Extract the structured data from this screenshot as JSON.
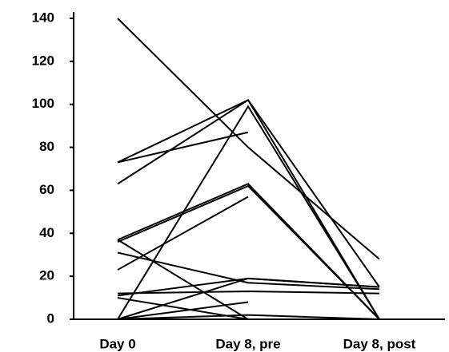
{
  "chart_data": {
    "type": "line",
    "categories": [
      "Day 0",
      "Day 8, pre",
      "Day 8, post"
    ],
    "ylim": [
      0,
      140
    ],
    "yticks": [
      0,
      20,
      40,
      60,
      80,
      100,
      120,
      140
    ],
    "series": [
      {
        "color": "#000000",
        "values": [
          140,
          80,
          28
        ]
      },
      {
        "color": "#000000",
        "values": [
          73,
          102,
          0
        ]
      },
      {
        "color": "#000000",
        "values": [
          73,
          87,
          null
        ]
      },
      {
        "color": "#000000",
        "values": [
          63,
          102,
          15
        ]
      },
      {
        "color": "#000000",
        "values": [
          0,
          99,
          0
        ]
      },
      {
        "color": "#000000",
        "values": [
          37,
          63,
          0
        ]
      },
      {
        "color": "#000000",
        "values": [
          23,
          57,
          null
        ]
      },
      {
        "color": "#000000",
        "values": [
          36,
          62,
          0
        ]
      },
      {
        "color": "#000000",
        "values": [
          37,
          0,
          0
        ]
      },
      {
        "color": "#000000",
        "values": [
          31,
          17,
          14
        ]
      },
      {
        "color": "#000000",
        "values": [
          12,
          13,
          12
        ]
      },
      {
        "color": "#000000",
        "values": [
          11,
          19,
          15
        ]
      },
      {
        "color": "#000000",
        "values": [
          10,
          0,
          null
        ]
      },
      {
        "color": "#000000",
        "values": [
          0,
          19,
          15
        ]
      },
      {
        "color": "#000000",
        "values": [
          0,
          8,
          null
        ]
      },
      {
        "color": "#000000",
        "values": [
          0,
          2,
          0
        ]
      },
      {
        "color": "#000000",
        "values": [
          0,
          0,
          0
        ]
      }
    ]
  }
}
